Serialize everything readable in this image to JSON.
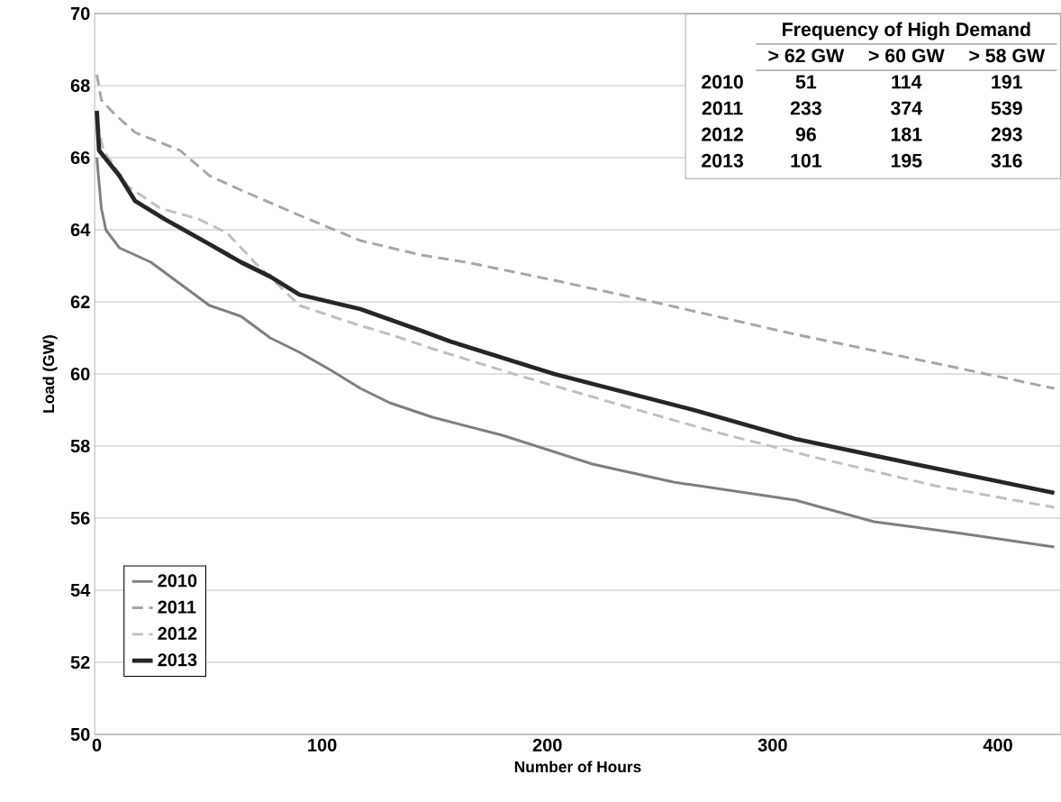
{
  "chart_data": {
    "type": "line",
    "xlabel": "Number of Hours",
    "ylabel": "Load (GW)",
    "xlim": [
      -1,
      428
    ],
    "ylim": [
      50,
      70
    ],
    "xticks": [
      0,
      100,
      200,
      300,
      400
    ],
    "yticks": [
      50,
      52,
      54,
      56,
      58,
      60,
      62,
      64,
      66,
      68,
      70
    ],
    "grid": "y",
    "legend": "bottom left",
    "series": [
      {
        "name": "2010",
        "color": "#7f7f7f",
        "line_style": "solid",
        "x": [
          0,
          2,
          4,
          10,
          24,
          37,
          50,
          64,
          77,
          90,
          104,
          117,
          130,
          149,
          180,
          220,
          256,
          310,
          345,
          381,
          425
        ],
        "values": [
          66.0,
          64.6,
          64.0,
          63.5,
          63.1,
          62.5,
          61.9,
          61.6,
          61.0,
          60.6,
          60.1,
          59.6,
          59.2,
          58.8,
          58.3,
          57.5,
          57.0,
          56.5,
          55.9,
          55.6,
          55.2
        ]
      },
      {
        "name": "2011",
        "color": "#a6a6a6",
        "line_style": "dashed",
        "x": [
          0,
          2,
          8,
          17,
          37,
          50,
          64,
          90,
          117,
          144,
          164,
          203,
          247,
          310,
          372,
          425
        ],
        "values": [
          68.3,
          67.6,
          67.2,
          66.7,
          66.2,
          65.5,
          65.1,
          64.4,
          63.7,
          63.3,
          63.1,
          62.6,
          62.0,
          61.1,
          60.3,
          59.6
        ]
      },
      {
        "name": "2012",
        "color": "#c0c0c0",
        "line_style": "dashed",
        "x": [
          0,
          3,
          14,
          28,
          45,
          55,
          58,
          70,
          90,
          114,
          130,
          149,
          185,
          229,
          274,
          318,
          372,
          425
        ],
        "values": [
          67.0,
          66.2,
          65.2,
          64.6,
          64.3,
          64.0,
          63.9,
          63.1,
          61.9,
          61.4,
          61.1,
          60.7,
          60.0,
          59.2,
          58.4,
          57.7,
          56.9,
          56.3
        ]
      },
      {
        "name": "2013",
        "color": "#262626",
        "line_style": "solid",
        "x": [
          0,
          1,
          10,
          17,
          30,
          50,
          64,
          77,
          90,
          117,
          144,
          157,
          203,
          265,
          310,
          363,
          425
        ],
        "values": [
          67.3,
          66.2,
          65.5,
          64.8,
          64.3,
          63.6,
          63.1,
          62.7,
          62.2,
          61.8,
          61.2,
          60.9,
          60.0,
          59.0,
          58.2,
          57.5,
          56.7
        ]
      }
    ],
    "annotations": [
      "Frequency of High Demand",
      "> 62 GW",
      "> 60 GW",
      "> 58 GW",
      "2010",
      "51",
      "114",
      "191",
      "2011",
      "233",
      "374",
      "539",
      "2012",
      "96",
      "181",
      "293",
      "2013",
      "101",
      "195",
      "316"
    ]
  }
}
